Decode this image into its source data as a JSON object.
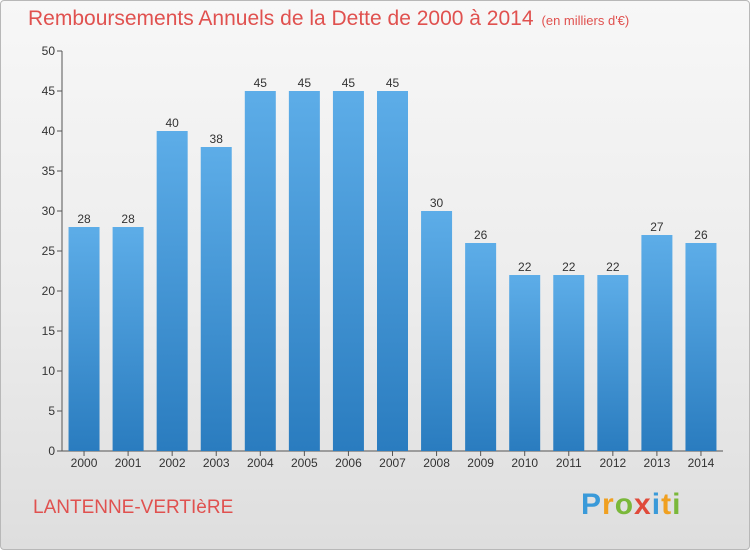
{
  "header": {
    "title": "Remboursements Annuels de la Dette de 2000 à 2014",
    "unit": "(en milliers d'€)"
  },
  "footer": {
    "location": "LANTENNE-VERTIèRE",
    "logo_letters": [
      "P",
      "r",
      "o",
      "x",
      "i",
      "t",
      "i"
    ],
    "logo_colors": [
      "#3a9ad9",
      "#f0a020",
      "#7ab83a",
      "#e04a3a",
      "#3a9ad9",
      "#f0a020",
      "#7ab83a"
    ]
  },
  "colors": {
    "bar_top": "#5dade8",
    "bar_bottom": "#2a7cbf",
    "title": "#e0514f"
  },
  "chart_data": {
    "type": "bar",
    "title": "Remboursements Annuels de la Dette de 2000 à 2014",
    "subtitle": "(en milliers d'€)",
    "xlabel": "",
    "ylabel": "",
    "categories": [
      "2000",
      "2001",
      "2002",
      "2003",
      "2004",
      "2005",
      "2006",
      "2007",
      "2008",
      "2009",
      "2010",
      "2011",
      "2012",
      "2013",
      "2014"
    ],
    "values": [
      28,
      28,
      40,
      38,
      45,
      45,
      45,
      45,
      30,
      26,
      22,
      22,
      22,
      27,
      26
    ],
    "ylim": [
      0,
      50
    ],
    "yticks": [
      0,
      5,
      10,
      15,
      20,
      25,
      30,
      35,
      40,
      45,
      50
    ],
    "grid": false,
    "data_labels": true
  }
}
